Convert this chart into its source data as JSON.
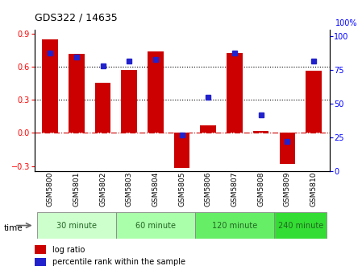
{
  "title": "GDS322 / 14635",
  "samples": [
    "GSM5800",
    "GSM5801",
    "GSM5802",
    "GSM5803",
    "GSM5804",
    "GSM5805",
    "GSM5806",
    "GSM5807",
    "GSM5808",
    "GSM5809",
    "GSM5810"
  ],
  "log_ratio": [
    0.855,
    0.72,
    0.46,
    0.575,
    0.74,
    -0.32,
    0.07,
    0.73,
    0.02,
    -0.28,
    0.565
  ],
  "percentile": [
    88,
    85,
    78,
    82,
    83,
    27,
    55,
    88,
    42,
    22,
    82
  ],
  "bar_color": "#cc0000",
  "dot_color": "#2222cc",
  "ylim_left": [
    -0.35,
    0.94
  ],
  "ylim_right": [
    0,
    105
  ],
  "yticks_left": [
    -0.3,
    0,
    0.3,
    0.6,
    0.9
  ],
  "yticks_right": [
    0,
    25,
    50,
    75,
    100
  ],
  "dotted_lines": [
    0.3,
    0.6
  ],
  "zero_line_color": "#cc0000",
  "groups": [
    {
      "label": "30 minute",
      "indices": [
        0,
        1,
        2
      ],
      "color": "#ccffcc"
    },
    {
      "label": "60 minute",
      "indices": [
        3,
        4,
        5
      ],
      "color": "#aaffaa"
    },
    {
      "label": "120 minute",
      "indices": [
        6,
        7,
        8
      ],
      "color": "#66ee66"
    },
    {
      "label": "240 minute",
      "indices": [
        9,
        10
      ],
      "color": "#33dd33"
    }
  ],
  "time_label": "time",
  "legend_log_ratio": "log ratio",
  "legend_percentile": "percentile rank within the sample"
}
